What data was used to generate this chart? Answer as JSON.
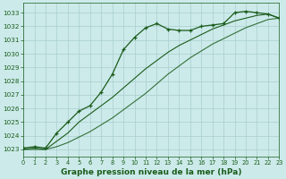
{
  "title": "Graphe pression niveau de la mer (hPa)",
  "bg_color": "#cceaea",
  "grid_color": "#aacece",
  "line_color": "#1a5c1a",
  "xlim": [
    0,
    23
  ],
  "ylim": [
    1022.5,
    1033.7
  ],
  "yticks": [
    1023,
    1024,
    1025,
    1026,
    1027,
    1028,
    1029,
    1030,
    1031,
    1032,
    1033
  ],
  "xticks": [
    0,
    1,
    2,
    3,
    4,
    5,
    6,
    7,
    8,
    9,
    10,
    11,
    12,
    13,
    14,
    15,
    16,
    17,
    18,
    19,
    20,
    21,
    22,
    23
  ],
  "s1_x": [
    0,
    1,
    2,
    3,
    4,
    5,
    6,
    7,
    8,
    9,
    10,
    11,
    12,
    13,
    14,
    15,
    16,
    17,
    18,
    19,
    20,
    21,
    22,
    23
  ],
  "s1_y": [
    1023.1,
    1023.2,
    1023.1,
    1024.2,
    1025.0,
    1025.8,
    1026.2,
    1027.2,
    1028.5,
    1030.3,
    1031.2,
    1031.9,
    1032.2,
    1031.8,
    1031.7,
    1031.7,
    1032.0,
    1032.1,
    1032.2,
    1033.0,
    1033.1,
    1033.0,
    1032.9,
    1032.6
  ],
  "s2_x": [
    0,
    1,
    2,
    3,
    4,
    5,
    6,
    7,
    8,
    9,
    10,
    11,
    12,
    13,
    14,
    15,
    16,
    17,
    18,
    19,
    20,
    21,
    22,
    23
  ],
  "s2_y": [
    1023.0,
    1023.1,
    1023.0,
    1023.6,
    1024.2,
    1025.0,
    1025.6,
    1026.2,
    1026.8,
    1027.5,
    1028.2,
    1028.9,
    1029.5,
    1030.1,
    1030.6,
    1031.0,
    1031.4,
    1031.8,
    1032.1,
    1032.4,
    1032.6,
    1032.8,
    1032.9,
    1032.6
  ],
  "s3_x": [
    0,
    1,
    2,
    3,
    4,
    5,
    6,
    7,
    8,
    9,
    10,
    11,
    12,
    13,
    14,
    15,
    16,
    17,
    18,
    19,
    20,
    21,
    22,
    23
  ],
  "s3_y": [
    1023.0,
    1023.0,
    1023.0,
    1023.2,
    1023.5,
    1023.9,
    1024.3,
    1024.8,
    1025.3,
    1025.9,
    1026.5,
    1027.1,
    1027.8,
    1028.5,
    1029.1,
    1029.7,
    1030.2,
    1030.7,
    1031.1,
    1031.5,
    1031.9,
    1032.2,
    1032.5,
    1032.6
  ]
}
